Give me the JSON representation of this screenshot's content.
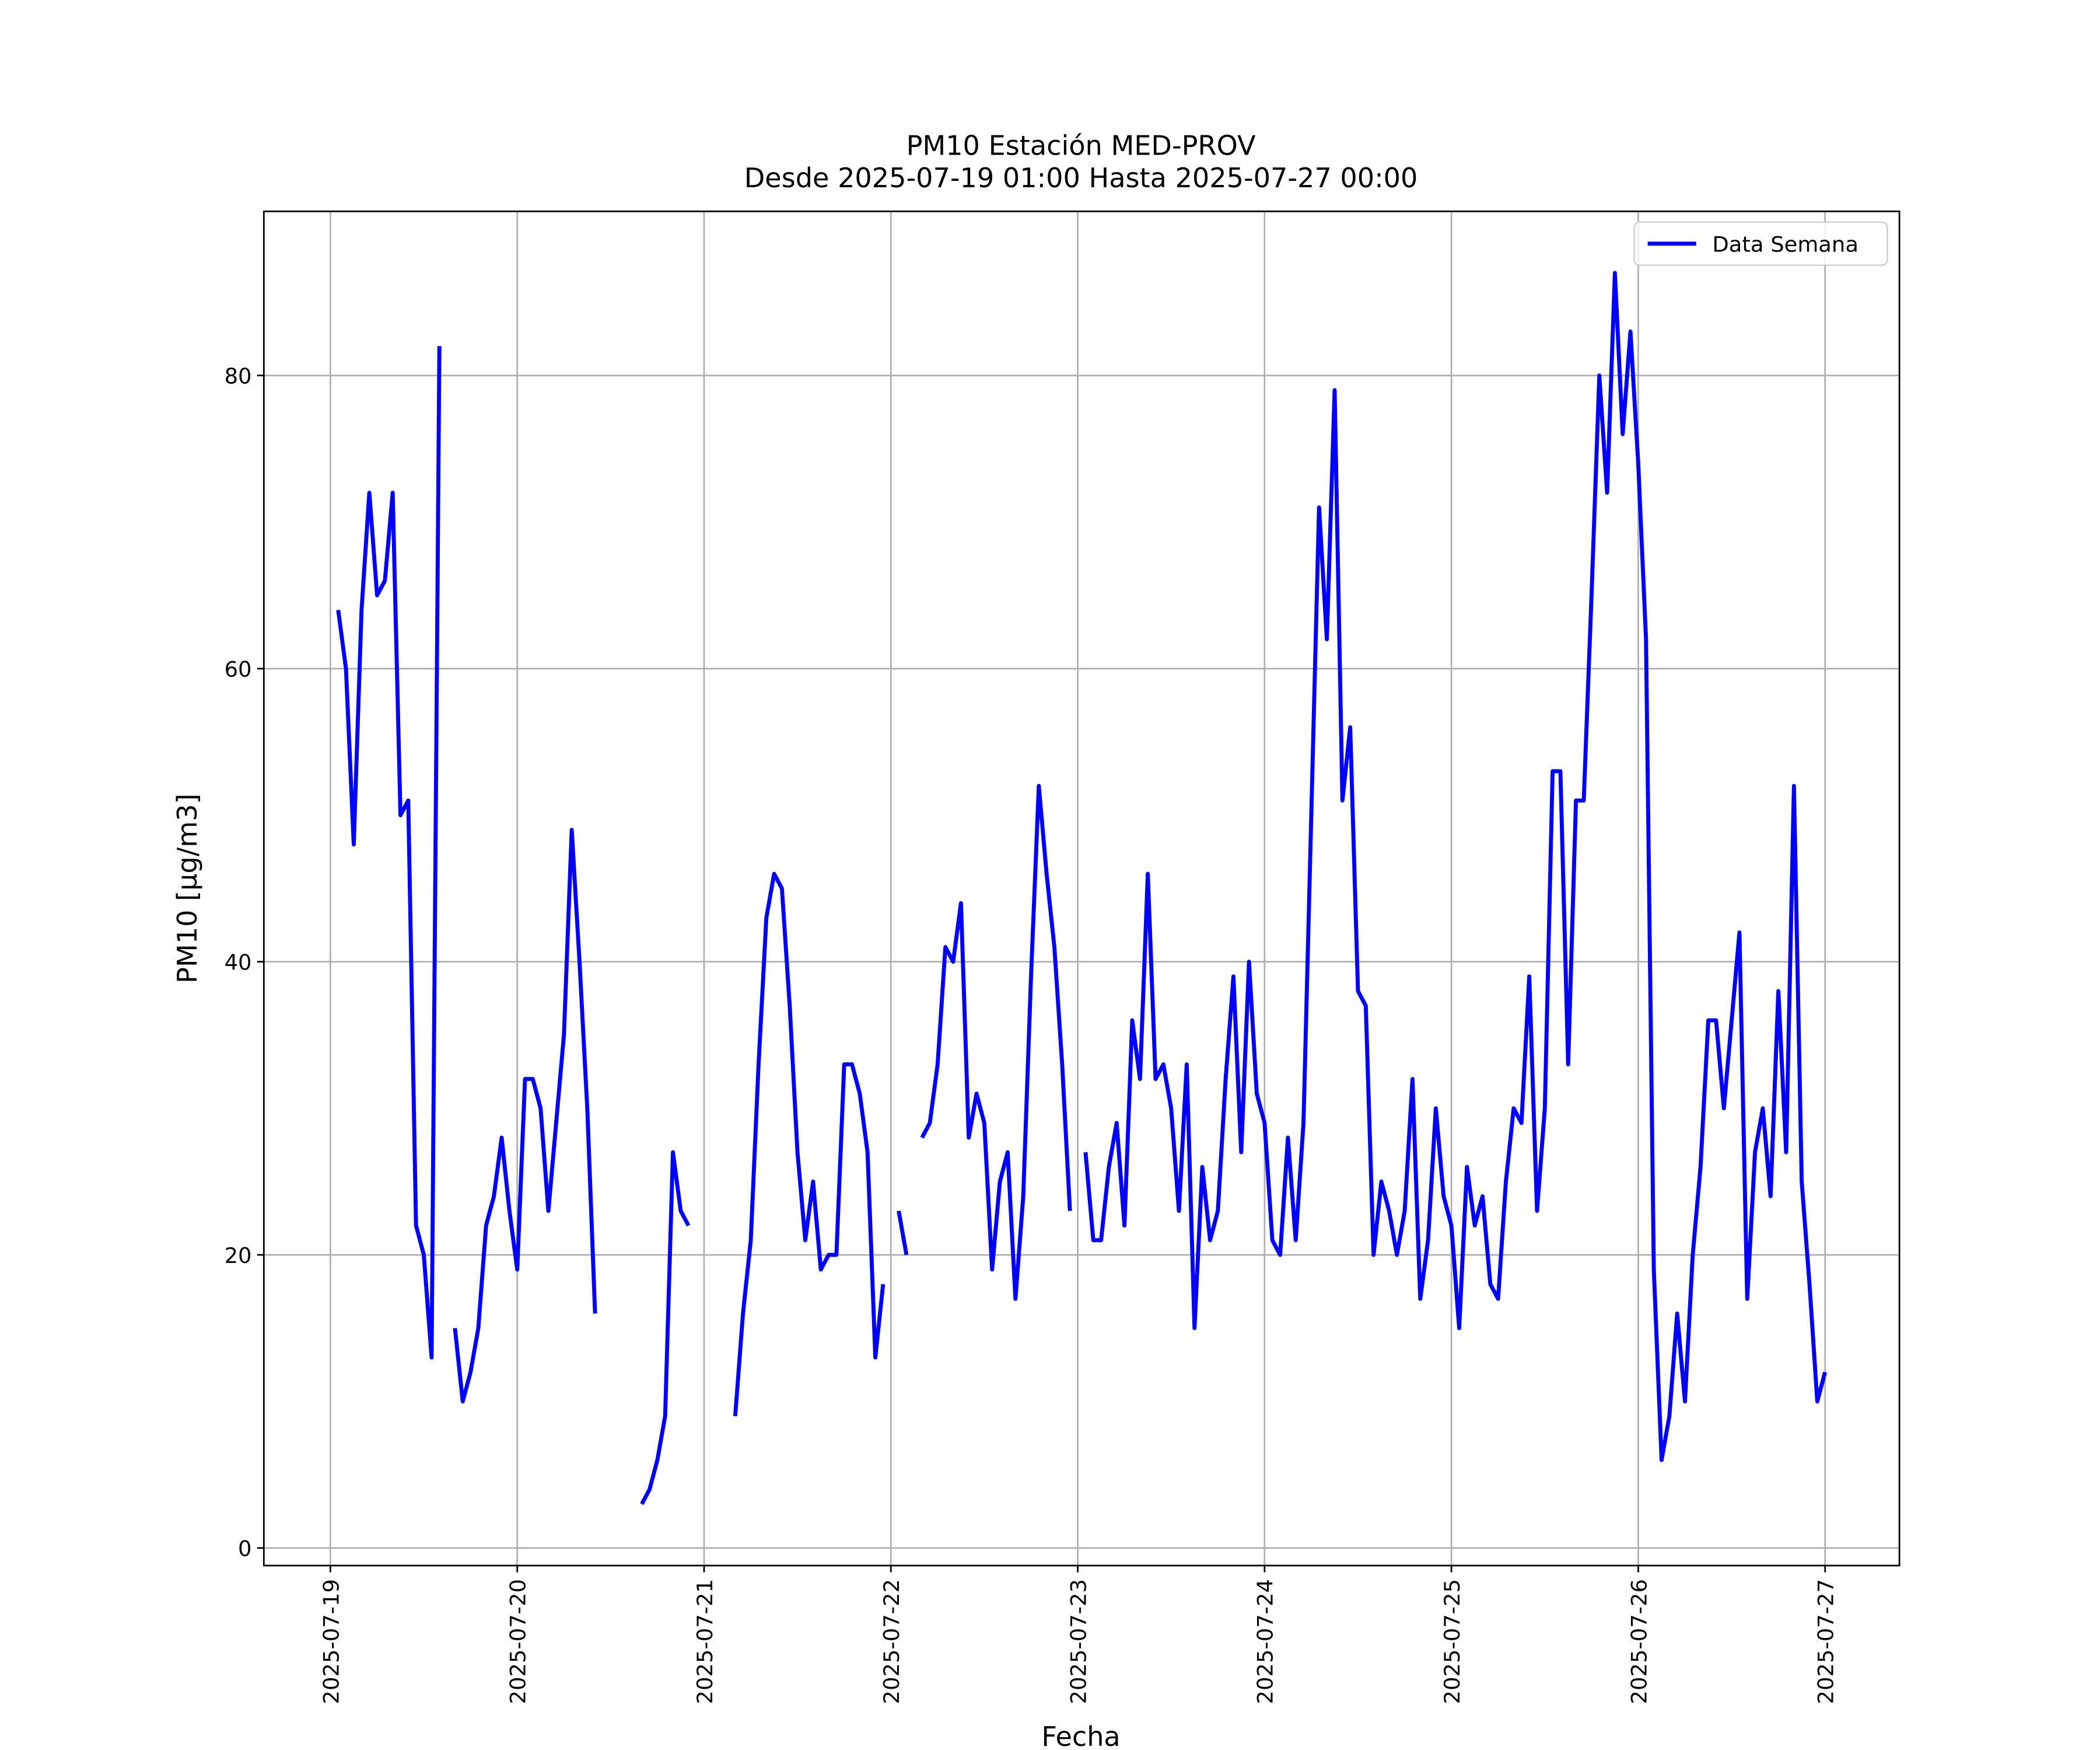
{
  "chart_data": {
    "type": "line",
    "title": "PM10 Estación MED-PROV",
    "subtitle": "Desde 2025-07-19 01:00 Hasta 2025-07-27 00:00",
    "x_label": "Fecha",
    "y_label": "PM10 [μg/m3]",
    "x": [
      "2025-07-19 01:00",
      "2025-07-19 02:00",
      "2025-07-19 03:00",
      "2025-07-19 04:00",
      "2025-07-19 05:00",
      "2025-07-19 06:00",
      "2025-07-19 07:00",
      "2025-07-19 08:00",
      "2025-07-19 09:00",
      "2025-07-19 10:00",
      "2025-07-19 11:00",
      "2025-07-19 12:00",
      "2025-07-19 13:00",
      "2025-07-19 14:00",
      "2025-07-19 15:00",
      "2025-07-19 16:00",
      "2025-07-19 17:00",
      "2025-07-19 18:00",
      "2025-07-19 19:00",
      "2025-07-19 20:00",
      "2025-07-19 21:00",
      "2025-07-19 22:00",
      "2025-07-19 23:00",
      "2025-07-20 00:00",
      "2025-07-20 01:00",
      "2025-07-20 02:00",
      "2025-07-20 03:00",
      "2025-07-20 04:00",
      "2025-07-20 05:00",
      "2025-07-20 06:00",
      "2025-07-20 07:00",
      "2025-07-20 08:00",
      "2025-07-20 09:00",
      "2025-07-20 10:00",
      "2025-07-20 11:00",
      "2025-07-20 12:00",
      "2025-07-20 13:00",
      "2025-07-20 14:00",
      "2025-07-20 15:00",
      "2025-07-20 16:00",
      "2025-07-20 17:00",
      "2025-07-20 18:00",
      "2025-07-20 19:00",
      "2025-07-20 20:00",
      "2025-07-20 21:00",
      "2025-07-20 22:00",
      "2025-07-20 23:00",
      "2025-07-21 00:00",
      "2025-07-21 01:00",
      "2025-07-21 02:00",
      "2025-07-21 03:00",
      "2025-07-21 04:00",
      "2025-07-21 05:00",
      "2025-07-21 06:00",
      "2025-07-21 07:00",
      "2025-07-21 08:00",
      "2025-07-21 09:00",
      "2025-07-21 10:00",
      "2025-07-21 11:00",
      "2025-07-21 12:00",
      "2025-07-21 13:00",
      "2025-07-21 14:00",
      "2025-07-21 15:00",
      "2025-07-21 16:00",
      "2025-07-21 17:00",
      "2025-07-21 18:00",
      "2025-07-21 19:00",
      "2025-07-21 20:00",
      "2025-07-21 21:00",
      "2025-07-21 22:00",
      "2025-07-21 23:00",
      "2025-07-22 00:00",
      "2025-07-22 01:00",
      "2025-07-22 02:00",
      "2025-07-22 03:00",
      "2025-07-22 04:00",
      "2025-07-22 05:00",
      "2025-07-22 06:00",
      "2025-07-22 07:00",
      "2025-07-22 08:00",
      "2025-07-22 09:00",
      "2025-07-22 10:00",
      "2025-07-22 11:00",
      "2025-07-22 12:00",
      "2025-07-22 13:00",
      "2025-07-22 14:00",
      "2025-07-22 15:00",
      "2025-07-22 16:00",
      "2025-07-22 17:00",
      "2025-07-22 18:00",
      "2025-07-22 19:00",
      "2025-07-22 20:00",
      "2025-07-22 21:00",
      "2025-07-22 22:00",
      "2025-07-22 23:00",
      "2025-07-23 00:00",
      "2025-07-23 01:00",
      "2025-07-23 02:00",
      "2025-07-23 03:00",
      "2025-07-23 04:00",
      "2025-07-23 05:00",
      "2025-07-23 06:00",
      "2025-07-23 07:00",
      "2025-07-23 08:00",
      "2025-07-23 09:00",
      "2025-07-23 10:00",
      "2025-07-23 11:00",
      "2025-07-23 12:00",
      "2025-07-23 13:00",
      "2025-07-23 14:00",
      "2025-07-23 15:00",
      "2025-07-23 16:00",
      "2025-07-23 17:00",
      "2025-07-23 18:00",
      "2025-07-23 19:00",
      "2025-07-23 20:00",
      "2025-07-23 21:00",
      "2025-07-23 22:00",
      "2025-07-23 23:00",
      "2025-07-24 00:00",
      "2025-07-24 01:00",
      "2025-07-24 02:00",
      "2025-07-24 03:00",
      "2025-07-24 04:00",
      "2025-07-24 05:00",
      "2025-07-24 06:00",
      "2025-07-24 07:00",
      "2025-07-24 08:00",
      "2025-07-24 09:00",
      "2025-07-24 10:00",
      "2025-07-24 11:00",
      "2025-07-24 12:00",
      "2025-07-24 13:00",
      "2025-07-24 14:00",
      "2025-07-24 15:00",
      "2025-07-24 16:00",
      "2025-07-24 17:00",
      "2025-07-24 18:00",
      "2025-07-24 19:00",
      "2025-07-24 20:00",
      "2025-07-24 21:00",
      "2025-07-24 22:00",
      "2025-07-24 23:00",
      "2025-07-25 00:00",
      "2025-07-25 01:00",
      "2025-07-25 02:00",
      "2025-07-25 03:00",
      "2025-07-25 04:00",
      "2025-07-25 05:00",
      "2025-07-25 06:00",
      "2025-07-25 07:00",
      "2025-07-25 08:00",
      "2025-07-25 09:00",
      "2025-07-25 10:00",
      "2025-07-25 11:00",
      "2025-07-25 12:00",
      "2025-07-25 13:00",
      "2025-07-25 14:00",
      "2025-07-25 15:00",
      "2025-07-25 16:00",
      "2025-07-25 17:00",
      "2025-07-25 18:00",
      "2025-07-25 19:00",
      "2025-07-25 20:00",
      "2025-07-25 21:00",
      "2025-07-25 22:00",
      "2025-07-25 23:00",
      "2025-07-26 00:00",
      "2025-07-26 01:00",
      "2025-07-26 02:00",
      "2025-07-26 03:00",
      "2025-07-26 04:00",
      "2025-07-26 05:00",
      "2025-07-26 06:00",
      "2025-07-26 07:00",
      "2025-07-26 08:00",
      "2025-07-26 09:00",
      "2025-07-26 10:00",
      "2025-07-26 11:00",
      "2025-07-26 12:00",
      "2025-07-26 13:00",
      "2025-07-26 14:00",
      "2025-07-26 15:00",
      "2025-07-26 16:00",
      "2025-07-26 17:00",
      "2025-07-26 18:00",
      "2025-07-26 19:00",
      "2025-07-26 20:00",
      "2025-07-26 21:00",
      "2025-07-26 22:00",
      "2025-07-26 23:00",
      "2025-07-27 00:00"
    ],
    "series": [
      {
        "name": "Data Semana",
        "color": "#0000ff",
        "values": [
          64,
          60,
          48,
          64,
          72,
          65,
          66,
          72,
          50,
          51,
          22,
          20,
          13,
          82,
          null,
          15,
          10,
          12,
          15,
          22,
          24,
          28,
          23,
          19,
          32,
          32,
          30,
          23,
          29,
          35,
          49,
          40,
          30,
          16,
          null,
          null,
          null,
          null,
          null,
          3,
          4,
          6,
          9,
          27,
          23,
          22,
          null,
          null,
          null,
          null,
          null,
          9,
          16,
          21,
          33,
          43,
          46,
          45,
          37,
          27,
          21,
          25,
          19,
          20,
          20,
          33,
          33,
          31,
          27,
          13,
          18,
          null,
          23,
          20,
          null,
          28,
          29,
          33,
          41,
          40,
          44,
          28,
          31,
          29,
          19,
          25,
          27,
          17,
          24,
          39,
          52,
          46,
          41,
          33,
          23,
          null,
          27,
          21,
          21,
          26,
          29,
          22,
          36,
          32,
          46,
          32,
          33,
          30,
          23,
          33,
          15,
          26,
          21,
          23,
          32,
          39,
          27,
          40,
          31,
          29,
          21,
          20,
          28,
          21,
          29,
          50,
          71,
          62,
          79,
          51,
          56,
          38,
          37,
          20,
          25,
          23,
          20,
          23,
          32,
          17,
          21,
          30,
          24,
          22,
          15,
          26,
          22,
          24,
          18,
          17,
          25,
          30,
          29,
          39,
          23,
          30,
          53,
          53,
          33,
          51,
          51,
          65,
          80,
          72,
          87,
          76,
          83,
          74,
          62,
          19,
          6,
          9,
          16,
          10,
          20,
          26,
          36,
          36,
          30,
          36,
          42,
          17,
          27,
          30,
          24,
          38,
          27,
          52,
          25,
          18,
          10,
          12
        ]
      }
    ],
    "xlim": [
      "2025-07-18 15:27",
      "2025-07-27 09:33"
    ],
    "xticks": [
      "2025-07-19",
      "2025-07-20",
      "2025-07-21",
      "2025-07-22",
      "2025-07-23",
      "2025-07-24",
      "2025-07-25",
      "2025-07-26",
      "2025-07-27"
    ],
    "ylim": [
      -1.2,
      91.2
    ],
    "yticks": [
      0,
      20,
      40,
      60,
      80
    ],
    "grid": true,
    "legend": "upper right"
  }
}
